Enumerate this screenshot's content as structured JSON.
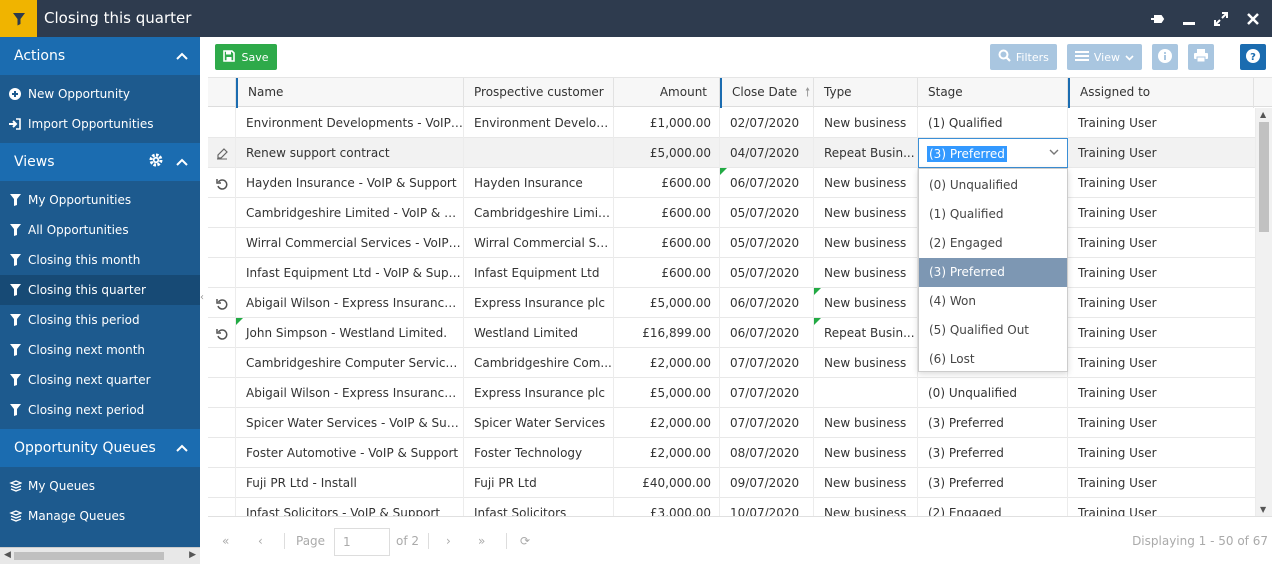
{
  "window": {
    "title": "Closing this quarter"
  },
  "sidebar": {
    "actions_title": "Actions",
    "actions": [
      {
        "label": "New Opportunity",
        "icon": "plus-circle-icon"
      },
      {
        "label": "Import Opportunities",
        "icon": "import-icon"
      }
    ],
    "views_title": "Views",
    "views": [
      {
        "label": "My Opportunities"
      },
      {
        "label": "All Opportunities"
      },
      {
        "label": "Closing this month"
      },
      {
        "label": "Closing this quarter",
        "active": true
      },
      {
        "label": "Closing this period"
      },
      {
        "label": "Closing next month"
      },
      {
        "label": "Closing next quarter"
      },
      {
        "label": "Closing next period"
      }
    ],
    "queues_title": "Opportunity Queues",
    "queues": [
      {
        "label": "My Queues"
      },
      {
        "label": "Manage Queues"
      }
    ]
  },
  "toolbar": {
    "save_label": "Save",
    "filters_label": "Filters",
    "view_label": "View"
  },
  "grid": {
    "columns": [
      "Name",
      "Prospective customer",
      "Amount",
      "Close Date",
      "Type",
      "Stage",
      "Assigned to"
    ],
    "rows": [
      {
        "icon": "",
        "name": "Environment Developments - VoIP &...",
        "customer": "Environment Develop...",
        "amount": "£1,000.00",
        "date": "02/07/2020",
        "type": "New business",
        "stage": "(1) Qualified",
        "assigned": "Training User"
      },
      {
        "icon": "edit",
        "name": "Renew support contract",
        "customer": "",
        "amount": "£5,000.00",
        "date": "04/07/2020",
        "type": "Repeat Busin...",
        "stage": "(3) Preferred",
        "assigned": "Training User"
      },
      {
        "icon": "undo",
        "name": "Hayden Insurance - VoIP & Support",
        "customer": "Hayden Insurance",
        "amount": "£600.00",
        "date": "06/07/2020",
        "type": "New business",
        "stage": "",
        "assigned": "Training User"
      },
      {
        "icon": "",
        "name": "Cambridgeshire Limited - VoIP & Su...",
        "customer": "Cambridgeshire Limited",
        "amount": "£600.00",
        "date": "05/07/2020",
        "type": "New business",
        "stage": "",
        "assigned": "Training User"
      },
      {
        "icon": "",
        "name": "Wirral Commercial Services - VoIP & ...",
        "customer": "Wirral Commercial Se...",
        "amount": "£600.00",
        "date": "05/07/2020",
        "type": "New business",
        "stage": "",
        "assigned": "Training User"
      },
      {
        "icon": "",
        "name": "Infast Equipment Ltd - VoIP & Support",
        "customer": "Infast Equipment Ltd",
        "amount": "£600.00",
        "date": "05/07/2020",
        "type": "New business",
        "stage": "",
        "assigned": "Training User"
      },
      {
        "icon": "undo",
        "name": "Abigail Wilson - Express Insurance plc",
        "customer": "Express Insurance plc",
        "amount": "£5,000.00",
        "date": "06/07/2020",
        "type": "New business",
        "stage": "",
        "assigned": "Training User"
      },
      {
        "icon": "undo",
        "name": "John Simpson - Westland Limited.",
        "customer": "Westland Limited",
        "amount": "£16,899.00",
        "date": "06/07/2020",
        "type": "Repeat Busin...",
        "stage": "",
        "assigned": "Training User"
      },
      {
        "icon": "",
        "name": "Cambridgeshire Computer Services -...",
        "customer": "Cambridgeshire Com...",
        "amount": "£2,000.00",
        "date": "07/07/2020",
        "type": "New business",
        "stage": "",
        "assigned": "Training User"
      },
      {
        "icon": "",
        "name": "Abigail Wilson - Express Insurance plc",
        "customer": "Express Insurance plc",
        "amount": "£5,000.00",
        "date": "07/07/2020",
        "type": "",
        "stage": "(0) Unqualified",
        "assigned": "Training User"
      },
      {
        "icon": "",
        "name": "Spicer Water Services - VoIP & Supp...",
        "customer": "Spicer Water Services",
        "amount": "£2,000.00",
        "date": "07/07/2020",
        "type": "New business",
        "stage": "(3) Preferred",
        "assigned": "Training User"
      },
      {
        "icon": "",
        "name": "Foster Automotive - VoIP & Support",
        "customer": "Foster Technology",
        "amount": "£2,000.00",
        "date": "08/07/2020",
        "type": "New business",
        "stage": "(3) Preferred",
        "assigned": "Training User"
      },
      {
        "icon": "",
        "name": "Fuji PR Ltd - Install",
        "customer": "Fuji PR Ltd",
        "amount": "£40,000.00",
        "date": "09/07/2020",
        "type": "New business",
        "stage": "(3) Preferred",
        "assigned": "Training User"
      },
      {
        "icon": "",
        "name": "Infast Solicitors - VoIP & Support",
        "customer": "Infast Solicitors",
        "amount": "£3,000.00",
        "date": "10/07/2020",
        "type": "New business",
        "stage": "(2) Engaged",
        "assigned": "Training User"
      }
    ]
  },
  "stage_dropdown": {
    "selected": "(3) Preferred",
    "options": [
      "(0) Unqualified",
      "(1) Qualified",
      "(2) Engaged",
      "(3) Preferred",
      "(4) Won",
      "(5) Qualified Out",
      "(6) Lost"
    ]
  },
  "pager": {
    "page_label": "Page",
    "page_value": "1",
    "of_label": "of 2",
    "displaying": "Displaying 1 - 50 of 67"
  }
}
